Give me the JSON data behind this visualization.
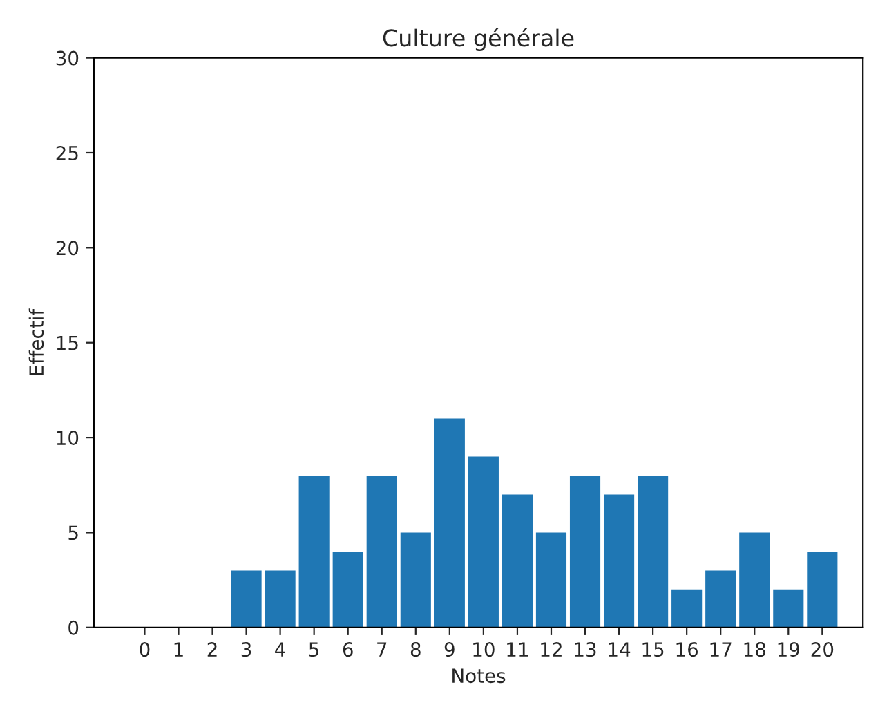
{
  "chart_data": {
    "type": "bar",
    "title": "Culture générale",
    "xlabel": "Notes",
    "ylabel": "Effectif",
    "x": [
      0,
      1,
      2,
      3,
      4,
      5,
      6,
      7,
      8,
      9,
      10,
      11,
      12,
      13,
      14,
      15,
      16,
      17,
      18,
      19,
      20
    ],
    "series": [
      {
        "color": "#1f77b4",
        "values": [
          0,
          0,
          0,
          3,
          3,
          8,
          4,
          8,
          5,
          11,
          9,
          7,
          5,
          8,
          7,
          8,
          2,
          3,
          5,
          2,
          4
        ]
      }
    ],
    "xlim": [
      -1.5,
      21.2
    ],
    "xticks": [
      0,
      1,
      2,
      3,
      4,
      5,
      6,
      7,
      8,
      9,
      10,
      11,
      12,
      13,
      14,
      15,
      16,
      17,
      18,
      19,
      20
    ],
    "ylim": [
      0,
      30
    ],
    "yticks": [
      0,
      5,
      10,
      15,
      20,
      25,
      30
    ],
    "grid": false,
    "legend": false
  }
}
